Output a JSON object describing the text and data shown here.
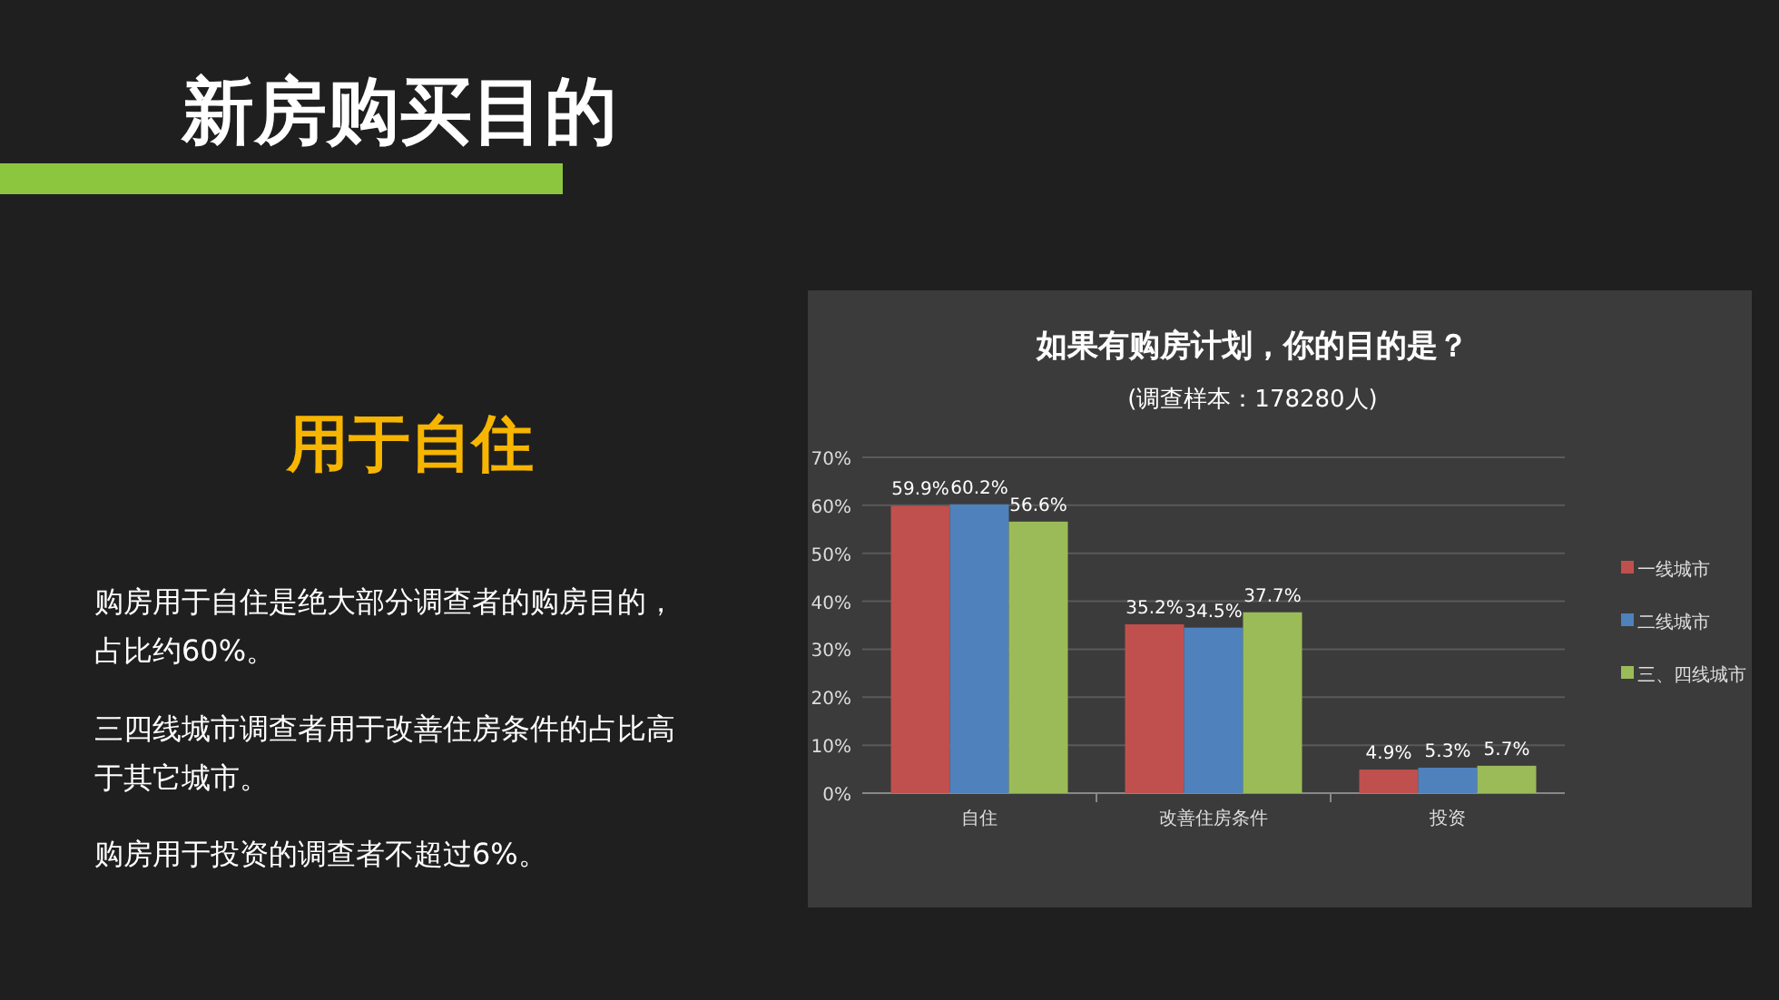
{
  "chart_data": {
    "type": "bar",
    "title": "如果有购房计划，你的目的是？",
    "subtitle": "(调查样本：178280人)",
    "categories": [
      "自住",
      "改善住房条件",
      "投资"
    ],
    "series": [
      {
        "name": "一线城市",
        "color": "#c0504d",
        "values": [
          59.9,
          35.2,
          4.9
        ],
        "value_labels": [
          "59.9%",
          "35.2%",
          "4.9%"
        ]
      },
      {
        "name": "二线城市",
        "color": "#4f81bd",
        "values": [
          60.2,
          34.5,
          5.3
        ],
        "value_labels": [
          "60.2%",
          "34.5%",
          "5.3%"
        ]
      },
      {
        "name": "三、四线城市",
        "color": "#9bbb59",
        "values": [
          56.6,
          37.7,
          5.7
        ],
        "value_labels": [
          "56.6%",
          "37.7%",
          "5.7%"
        ]
      }
    ],
    "ylim": [
      0,
      70
    ],
    "yticks": [
      {
        "value": 0,
        "label": "0%"
      },
      {
        "value": 10,
        "label": "10%"
      },
      {
        "value": 20,
        "label": "20%"
      },
      {
        "value": 30,
        "label": "30%"
      },
      {
        "value": 40,
        "label": "40%"
      },
      {
        "value": 50,
        "label": "50%"
      },
      {
        "value": 60,
        "label": "60%"
      },
      {
        "value": 70,
        "label": "70%"
      }
    ],
    "grid": "y",
    "legend": "right",
    "annotations": [
      "新房购买目的",
      "用于自住",
      "购房用于自住是绝大部分调查者的购房目的，占比约60%。",
      "三四线城市调查者用于改善住房条件的占比高于其它城市。",
      "购房用于投资的调查者不超过6%。"
    ]
  }
}
